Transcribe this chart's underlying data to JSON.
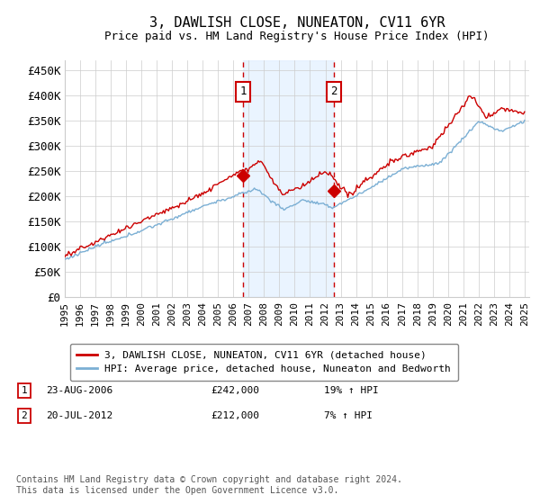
{
  "title": "3, DAWLISH CLOSE, NUNEATON, CV11 6YR",
  "subtitle": "Price paid vs. HM Land Registry's House Price Index (HPI)",
  "xlim_start": 1995.0,
  "xlim_end": 2025.3,
  "ylim": [
    0,
    470000
  ],
  "yticks": [
    0,
    50000,
    100000,
    150000,
    200000,
    250000,
    300000,
    350000,
    400000,
    450000
  ],
  "ytick_labels": [
    "£0",
    "£50K",
    "£100K",
    "£150K",
    "£200K",
    "£250K",
    "£300K",
    "£350K",
    "£400K",
    "£450K"
  ],
  "xticks": [
    1995,
    1996,
    1997,
    1998,
    1999,
    2000,
    2001,
    2002,
    2003,
    2004,
    2005,
    2006,
    2007,
    2008,
    2009,
    2010,
    2011,
    2012,
    2013,
    2014,
    2015,
    2016,
    2017,
    2018,
    2019,
    2020,
    2021,
    2022,
    2023,
    2024,
    2025
  ],
  "sale1_x": 2006.646,
  "sale1_y": 242000,
  "sale1_label": "1",
  "sale1_date": "23-AUG-2006",
  "sale1_price": "£242,000",
  "sale1_hpi": "19% ↑ HPI",
  "sale2_x": 2012.554,
  "sale2_y": 212000,
  "sale2_label": "2",
  "sale2_date": "20-JUL-2012",
  "sale2_price": "£212,000",
  "sale2_hpi": "7% ↑ HPI",
  "legend_entry1": "3, DAWLISH CLOSE, NUNEATON, CV11 6YR (detached house)",
  "legend_entry2": "HPI: Average price, detached house, Nuneaton and Bedworth",
  "footer": "Contains HM Land Registry data © Crown copyright and database right 2024.\nThis data is licensed under the Open Government Licence v3.0.",
  "hpi_color": "#7bafd4",
  "sale_color": "#cc0000",
  "background_color": "#ffffff",
  "plot_bg_color": "#ffffff",
  "grid_color": "#cccccc",
  "annotation_box_color": "#cc0000",
  "shade_color": "#ddeeff"
}
